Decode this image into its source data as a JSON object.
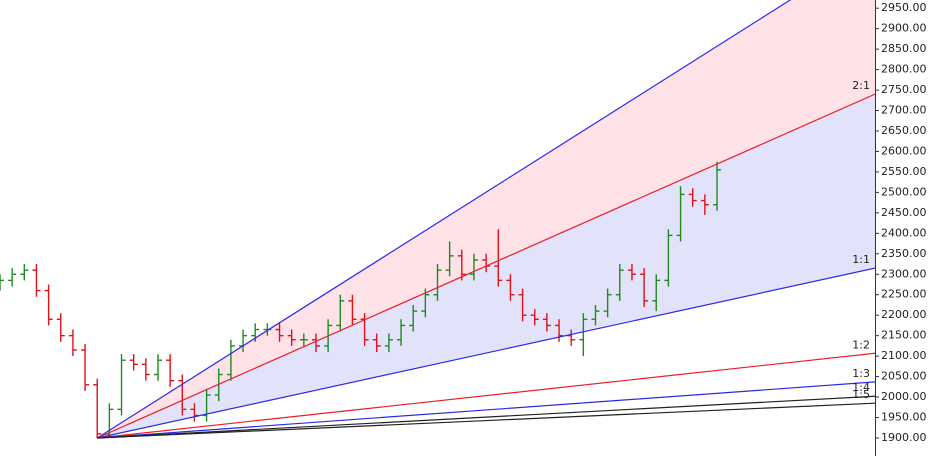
{
  "chart_data": {
    "type": "ohlc",
    "x": [
      0,
      1,
      2,
      3,
      4,
      5,
      6,
      7,
      8,
      9,
      10,
      11,
      12,
      13,
      14,
      15,
      16,
      17,
      18,
      19,
      20,
      21,
      22,
      23,
      24,
      25,
      26,
      27,
      28,
      29,
      30,
      31,
      32,
      33,
      34,
      35,
      36,
      37,
      38,
      39,
      40,
      41,
      42,
      43,
      44,
      45,
      46,
      47,
      48,
      49,
      50,
      51,
      52,
      53,
      54,
      55,
      56,
      57,
      58,
      59
    ],
    "open": [
      2275,
      2285,
      2300,
      2310,
      2260,
      2190,
      2150,
      2115,
      2030,
      1910,
      1970,
      2090,
      2080,
      2055,
      2090,
      2040,
      1970,
      1955,
      2005,
      2055,
      2125,
      2150,
      2165,
      2165,
      2150,
      2140,
      2140,
      2125,
      2175,
      2235,
      2190,
      2140,
      2125,
      2140,
      2175,
      2210,
      2250,
      2310,
      2345,
      2300,
      2335,
      2320,
      2285,
      2250,
      2200,
      2190,
      2175,
      2150,
      2140,
      2190,
      2210,
      2250,
      2310,
      2300,
      2235,
      2285,
      2395,
      2495,
      2480,
      2470
    ],
    "high": [
      2300,
      2315,
      2325,
      2325,
      2275,
      2205,
      2165,
      2130,
      2045,
      1985,
      2105,
      2105,
      2095,
      2105,
      2105,
      2055,
      1985,
      2020,
      2070,
      2140,
      2165,
      2180,
      2180,
      2180,
      2165,
      2155,
      2155,
      2190,
      2250,
      2250,
      2205,
      2155,
      2155,
      2190,
      2225,
      2265,
      2325,
      2380,
      2360,
      2350,
      2350,
      2410,
      2300,
      2265,
      2215,
      2205,
      2190,
      2165,
      2205,
      2225,
      2265,
      2325,
      2325,
      2315,
      2300,
      2410,
      2515,
      2510,
      2495,
      2575
    ],
    "low": [
      2260,
      2270,
      2285,
      2245,
      2175,
      2135,
      2100,
      2015,
      1900,
      1900,
      1955,
      2065,
      2040,
      2040,
      2025,
      1955,
      1940,
      1940,
      1990,
      2040,
      2110,
      2135,
      2150,
      2135,
      2125,
      2125,
      2110,
      2110,
      2160,
      2175,
      2125,
      2110,
      2110,
      2125,
      2160,
      2195,
      2235,
      2295,
      2285,
      2285,
      2305,
      2270,
      2235,
      2185,
      2175,
      2160,
      2135,
      2125,
      2100,
      2175,
      2195,
      2235,
      2285,
      2220,
      2210,
      2270,
      2380,
      2465,
      2445,
      2455
    ],
    "close": [
      2285,
      2300,
      2310,
      2260,
      2190,
      2150,
      2115,
      2030,
      1910,
      1970,
      2090,
      2080,
      2055,
      2090,
      2040,
      1970,
      1955,
      2005,
      2055,
      2125,
      2150,
      2165,
      2165,
      2150,
      2140,
      2140,
      2125,
      2175,
      2235,
      2190,
      2140,
      2125,
      2140,
      2175,
      2210,
      2250,
      2310,
      2345,
      2300,
      2335,
      2320,
      2285,
      2250,
      2200,
      2190,
      2175,
      2150,
      2140,
      2190,
      2210,
      2250,
      2310,
      2300,
      2235,
      2285,
      2395,
      2495,
      2480,
      2470,
      2555
    ],
    "up_color": "#1f8a1f",
    "down_color": "#e0101a",
    "xlim": [
      0,
      72
    ],
    "ylim": [
      1856,
      2970
    ],
    "yticks": [
      {
        "value": 1900,
        "label": "1900.00"
      },
      {
        "value": 1950,
        "label": "1950.00"
      },
      {
        "value": 2000,
        "label": "2000.00"
      },
      {
        "value": 2050,
        "label": "2050.00"
      },
      {
        "value": 2100,
        "label": "2100.00"
      },
      {
        "value": 2150,
        "label": "2150.00"
      },
      {
        "value": 2200,
        "label": "2200.00"
      },
      {
        "value": 2250,
        "label": "2250.00"
      },
      {
        "value": 2300,
        "label": "2300.00"
      },
      {
        "value": 2350,
        "label": "2350.00"
      },
      {
        "value": 2400,
        "label": "2400.00"
      },
      {
        "value": 2450,
        "label": "2450.00"
      },
      {
        "value": 2500,
        "label": "2500.00"
      },
      {
        "value": 2550,
        "label": "2550.00"
      },
      {
        "value": 2600,
        "label": "2600.00"
      },
      {
        "value": 2650,
        "label": "2650.00"
      },
      {
        "value": 2700,
        "label": "2700.00"
      },
      {
        "value": 2750,
        "label": "2750.00"
      },
      {
        "value": 2800,
        "label": "2800.00"
      },
      {
        "value": 2850,
        "label": "2850.00"
      },
      {
        "value": 2900,
        "label": "2900.00"
      },
      {
        "value": 2950,
        "label": "2950.00"
      }
    ],
    "fan": [
      {
        "color": "#2a2ae6",
        "fill": "#ffe1e8",
        "x": [
          8,
          72
        ],
        "values": [
          1900,
          3101
        ]
      },
      {
        "label": "2:1",
        "color": "#e8202a",
        "fill": "#e2e3fb",
        "x": [
          8,
          72
        ],
        "values": [
          1900,
          2740
        ]
      },
      {
        "label": "1:1",
        "color": "#2a2ae6",
        "x": [
          8,
          72
        ],
        "values": [
          1900,
          2315
        ]
      },
      {
        "label": "1:2",
        "color": "#e8202a",
        "x": [
          8,
          72
        ],
        "values": [
          1900,
          2107
        ]
      },
      {
        "label": "1:3",
        "color": "#2a2ae6",
        "x": [
          8,
          72
        ],
        "values": [
          1900,
          2037
        ]
      },
      {
        "label": "1:4",
        "color": "#222222",
        "x": [
          8,
          72
        ],
        "values": [
          1900,
          2002
        ]
      },
      {
        "label": "1:5",
        "color": "#222222",
        "x": [
          8,
          72
        ],
        "values": [
          1900,
          1985
        ]
      }
    ]
  }
}
